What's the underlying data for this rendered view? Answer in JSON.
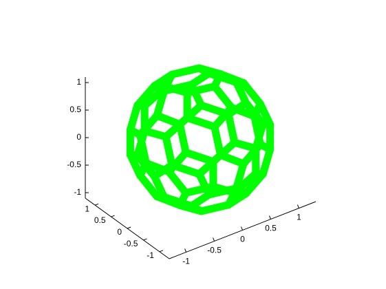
{
  "chart_data": {
    "type": "3d-mesh",
    "title": "",
    "xlabel": "",
    "ylabel": "",
    "zlabel": "",
    "shape": "truncated-icosahedron",
    "edge_color": "#00ff00",
    "background": "#ffffff",
    "xlim": [
      -1.3,
      1.3
    ],
    "ylim": [
      -1.3,
      1.3
    ],
    "zlim": [
      -1.1,
      1.1
    ],
    "grid": false,
    "view": {
      "azimuth": -37.5,
      "elevation": 30
    },
    "axes": {
      "x": {
        "ticks": [
          -1,
          -0.5,
          0,
          0.5,
          1
        ],
        "tick_labels": [
          "-1",
          "-0.5",
          "0",
          "0.5",
          "1"
        ]
      },
      "y": {
        "ticks": [
          -1,
          -0.5,
          0,
          0.5,
          1
        ],
        "tick_labels": [
          "-1",
          "-0.5",
          "0",
          "0.5",
          "1"
        ]
      },
      "z": {
        "ticks": [
          -1,
          -0.5,
          0,
          0.5,
          1
        ],
        "tick_labels": [
          "-1",
          "-0.5",
          "0",
          "0.5",
          "1"
        ]
      }
    }
  }
}
